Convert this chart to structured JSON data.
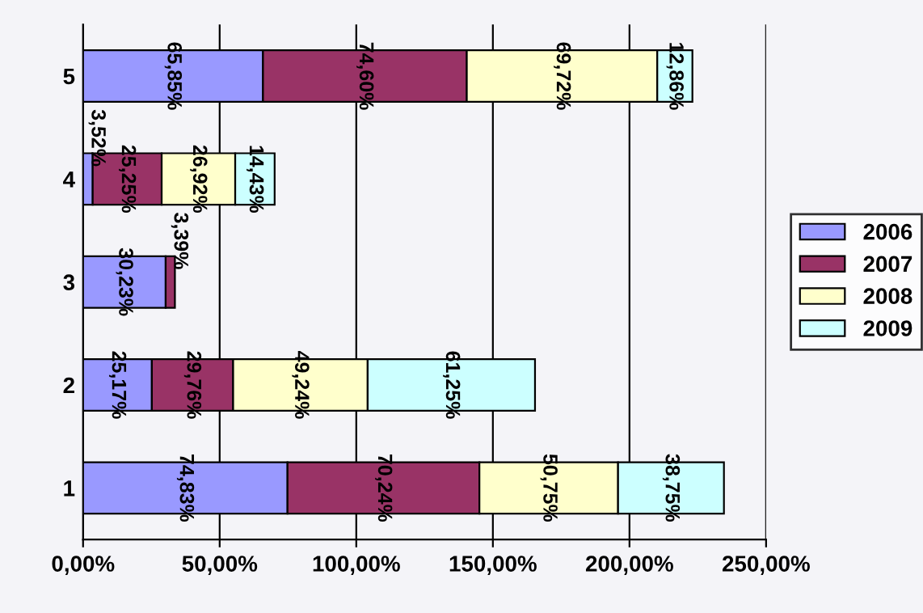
{
  "chart_data": {
    "type": "bar",
    "orientation": "horizontal",
    "stacked": true,
    "categories": [
      "5",
      "4",
      "3",
      "2",
      "1"
    ],
    "series": [
      {
        "name": "2006",
        "color": "#9999ff",
        "values": [
          65.85,
          3.52,
          30.23,
          25.17,
          74.83
        ],
        "value_labels": [
          "65,85%",
          "3,52%",
          "30,23%",
          "25,17%",
          "74,83%"
        ]
      },
      {
        "name": "2007",
        "color": "#993366",
        "values": [
          74.6,
          25.25,
          3.39,
          29.76,
          70.24
        ],
        "value_labels": [
          "74,60%",
          "25,25%",
          "3,39%",
          "29,76%",
          "70,24%"
        ]
      },
      {
        "name": "2008",
        "color": "#ffffcc",
        "values": [
          69.72,
          26.92,
          null,
          49.24,
          50.75
        ],
        "value_labels": [
          "69,72%",
          "26,92%",
          null,
          "49,24%",
          "50,75%"
        ]
      },
      {
        "name": "2009",
        "color": "#ccffff",
        "values": [
          12.86,
          14.43,
          null,
          61.25,
          38.75
        ],
        "value_labels": [
          "12,86%",
          "14,43%",
          null,
          "61,25%",
          "38,75%"
        ]
      }
    ],
    "xlim": [
      0,
      250
    ],
    "xticks": [
      {
        "value": 0,
        "label": "0,00%"
      },
      {
        "value": 50,
        "label": "50,00%"
      },
      {
        "value": 100,
        "label": "100,00%"
      },
      {
        "value": 150,
        "label": "150,00%"
      },
      {
        "value": 200,
        "label": "200,00%"
      },
      {
        "value": 250,
        "label": "250,00%"
      }
    ],
    "grid": "x",
    "legend": "right"
  }
}
